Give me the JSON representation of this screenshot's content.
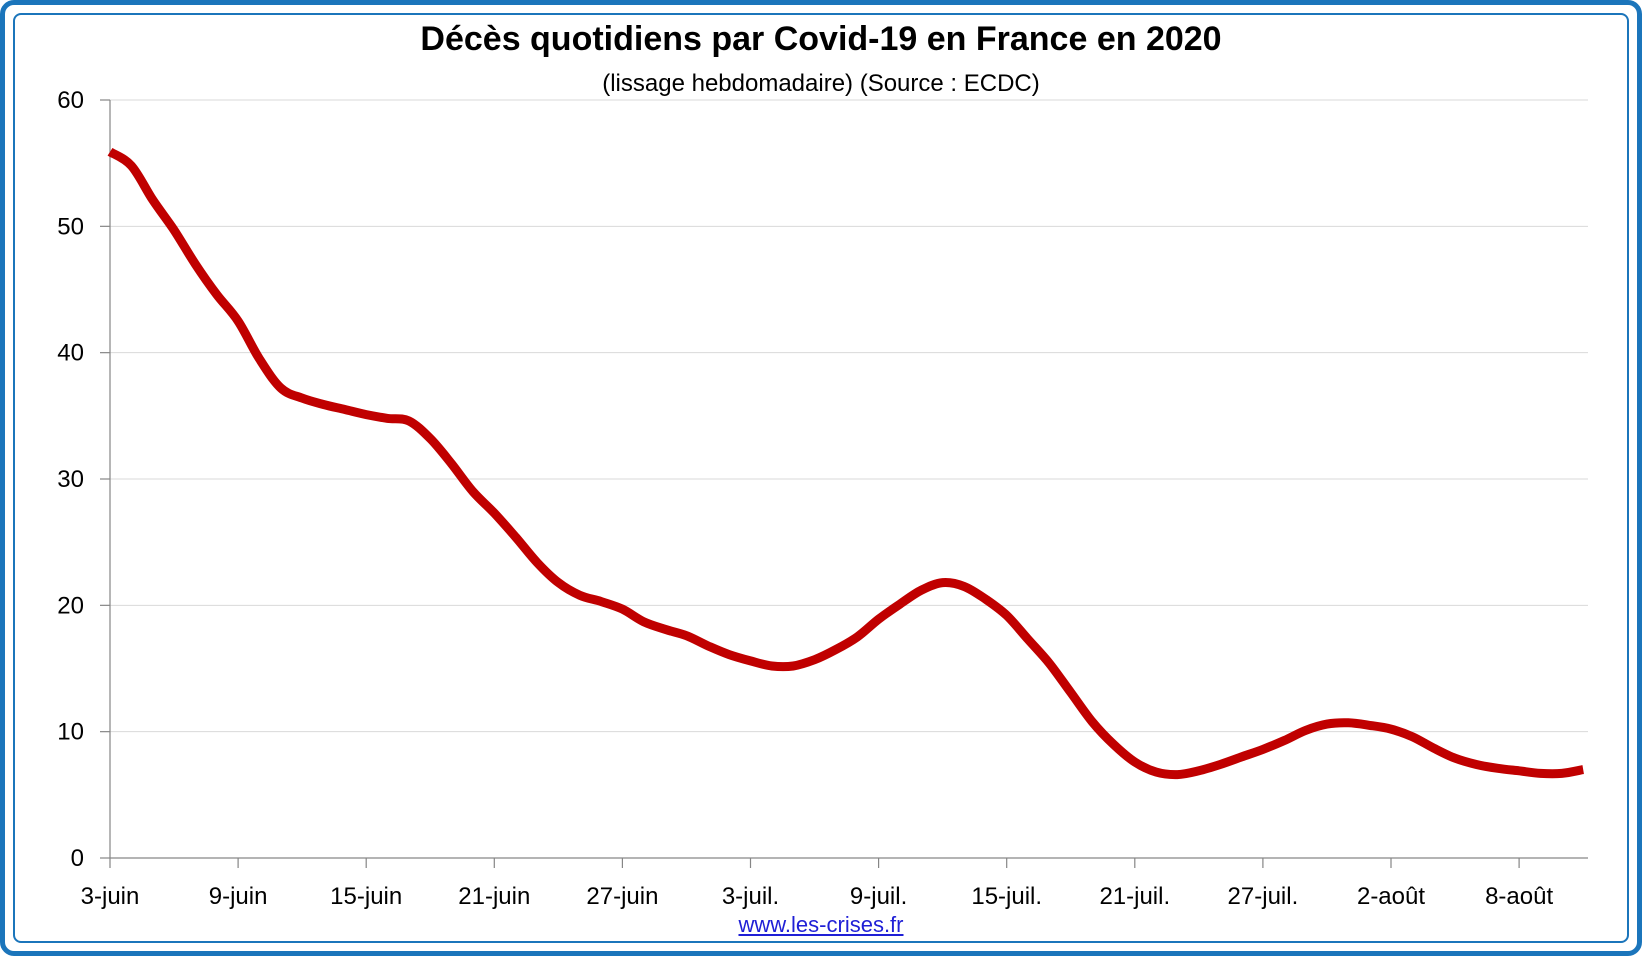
{
  "chart_data": {
    "type": "line",
    "title": "Décès quotidiens par Covid-19 en France en 2020",
    "subtitle": "(lissage hebdomadaire) (Source : ECDC)",
    "xlabel": "",
    "ylabel": "",
    "ylim": [
      0,
      60
    ],
    "yticks": [
      0,
      10,
      20,
      30,
      40,
      50,
      60
    ],
    "grid": true,
    "legend": "none",
    "x_tick_labels": [
      "3-juin",
      "9-juin",
      "15-juin",
      "21-juin",
      "27-juin",
      "3-juil.",
      "9-juil.",
      "15-juil.",
      "21-juil.",
      "27-juil.",
      "2-août",
      "8-août"
    ],
    "x_tick_spacing_days": 6,
    "series": [
      {
        "color": "#c00000",
        "values": [
          55.9,
          54.8,
          52.1,
          49.7,
          47.0,
          44.6,
          42.5,
          39.5,
          37.2,
          36.4,
          35.9,
          35.5,
          35.1,
          34.8,
          34.6,
          33.2,
          31.2,
          29.0,
          27.3,
          25.4,
          23.4,
          21.8,
          20.8,
          20.3,
          19.7,
          18.7,
          18.1,
          17.6,
          16.8,
          16.1,
          15.6,
          15.2,
          15.2,
          15.7,
          16.5,
          17.5,
          18.9,
          20.1,
          21.2,
          21.8,
          21.5,
          20.5,
          19.2,
          17.3,
          15.4,
          13.1,
          10.8,
          9.0,
          7.6,
          6.8,
          6.6,
          6.9,
          7.4,
          8.0,
          8.6,
          9.3,
          10.1,
          10.6,
          10.7,
          10.5,
          10.2,
          9.6,
          8.7,
          7.9,
          7.4,
          7.1,
          6.9,
          6.7,
          6.7,
          7.0
        ]
      }
    ],
    "footer": "www.les-crises.fr"
  }
}
